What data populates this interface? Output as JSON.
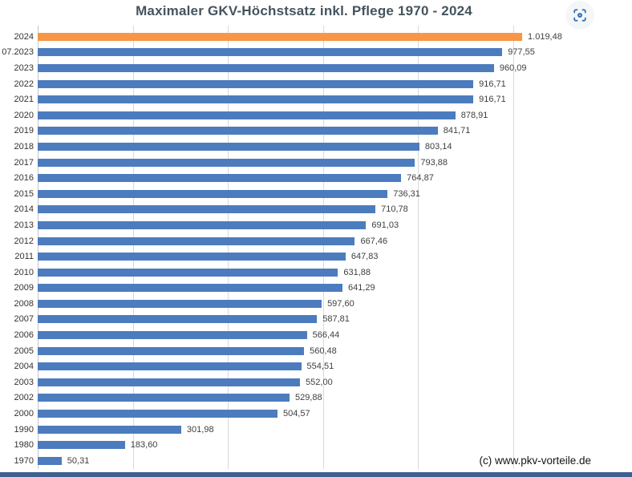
{
  "title": "Maximaler GKV-Höchstsatz inkl. Pflege 1970 - 2024",
  "watermark": "(c) www.pkv-vorteile.de",
  "toolbar": {
    "focus_icon": "focus-icon"
  },
  "colors": {
    "bar": "#4C7CBE",
    "highlight": "#F79646",
    "title": "#44545E",
    "grid": "#D9D9D9",
    "axis": "#C6C6C6",
    "icon": "#2A6CB4",
    "footer_strip": "#3F5F90"
  },
  "chart_data": {
    "type": "bar",
    "orientation": "horizontal",
    "title": "Maximaler GKV-Höchstsatz inkl. Pflege 1970 - 2024",
    "xlabel": "",
    "ylabel": "",
    "legend": "none",
    "grid": true,
    "xlim": [
      0,
      1200
    ],
    "gridline_values": [
      200,
      400,
      600,
      800,
      1000
    ],
    "highlight_index": 0,
    "categories": [
      "2024",
      "07.2023",
      "2023",
      "2022",
      "2021",
      "2020",
      "2019",
      "2018",
      "2017",
      "2016",
      "2015",
      "2014",
      "2013",
      "2012",
      "2011",
      "2010",
      "2009",
      "2008",
      "2007",
      "2006",
      "2005",
      "2004",
      "2003",
      "2002",
      "2000",
      "1990",
      "1980",
      "1970"
    ],
    "values": [
      1019.48,
      977.55,
      960.09,
      916.71,
      916.71,
      878.91,
      841.71,
      803.14,
      793.88,
      764.87,
      736.31,
      710.78,
      691.03,
      667.46,
      647.83,
      631.88,
      641.29,
      597.6,
      587.81,
      566.44,
      560.48,
      554.51,
      552.0,
      529.88,
      504.57,
      301.98,
      183.6,
      50.31
    ],
    "value_labels": [
      "1.019,48",
      "977,55",
      "960,09",
      "916,71",
      "916,71",
      "878,91",
      "841,71",
      "803,14",
      "793,88",
      "764,87",
      "736,31",
      "710,78",
      "691,03",
      "667,46",
      "647,83",
      "631,88",
      "641,29",
      "597,60",
      "587,81",
      "566,44",
      "560,48",
      "554,51",
      "552,00",
      "529,88",
      "504,57",
      "301,98",
      "183,60",
      "50,31"
    ]
  }
}
